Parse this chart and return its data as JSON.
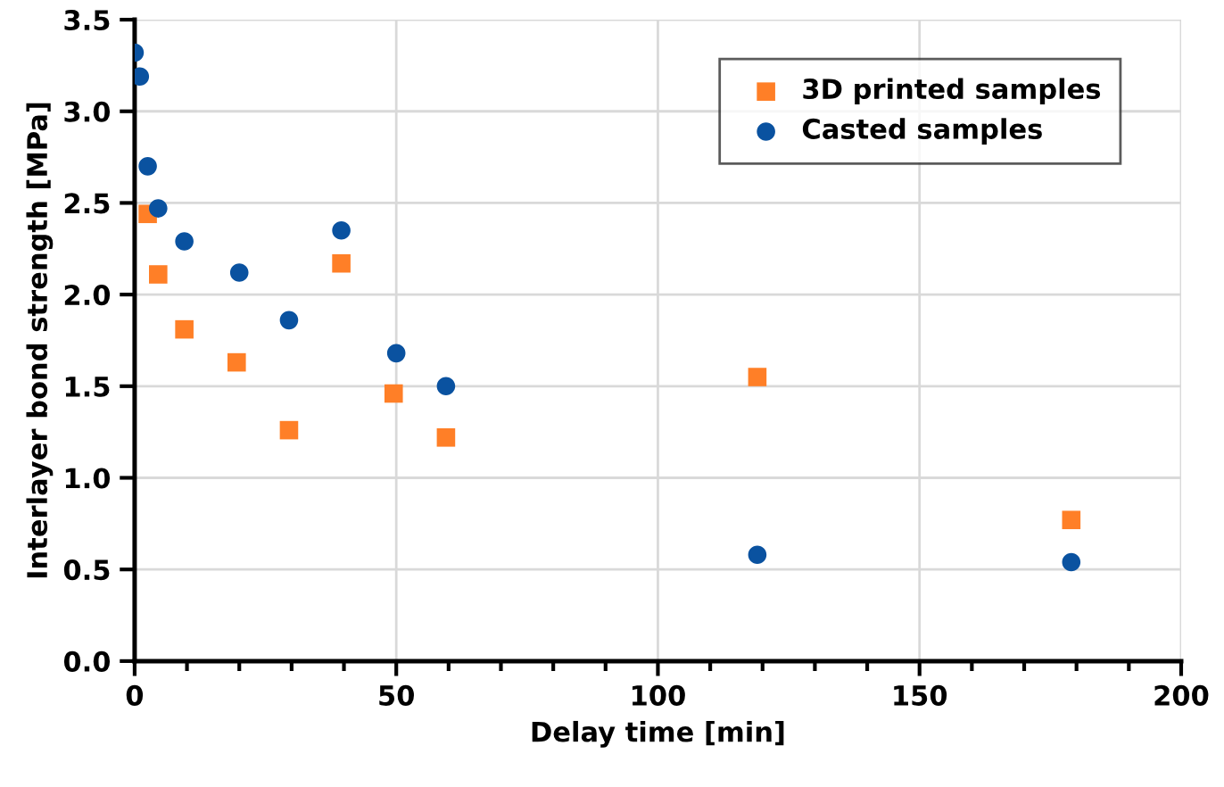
{
  "chart_data": {
    "type": "scatter",
    "xlabel": "Delay time [min]",
    "ylabel": "Interlayer bond strength [MPa]",
    "series": [
      {
        "name": "3D printed samples",
        "color": "#ff7f27",
        "marker": "square",
        "x": [
          2.5,
          4.5,
          9.5,
          19.5,
          29.5,
          39.5,
          49.5,
          59.5,
          119,
          179
        ],
        "values": [
          2.44,
          2.11,
          1.81,
          1.63,
          1.26,
          2.17,
          1.46,
          1.22,
          1.55,
          0.77
        ]
      },
      {
        "name": "Casted samples",
        "color": "#0a52a0",
        "marker": "circle",
        "x": [
          0,
          1,
          2.5,
          4.5,
          9.5,
          20,
          29.5,
          39.5,
          50,
          59.5,
          119,
          179
        ],
        "values": [
          3.32,
          3.19,
          2.7,
          2.47,
          2.29,
          2.12,
          1.86,
          2.35,
          1.68,
          1.5,
          0.58,
          0.54
        ]
      }
    ],
    "xlim": [
      0,
      200
    ],
    "xticks": [
      0,
      50,
      100,
      150,
      200
    ],
    "ylim": [
      0,
      3.5
    ],
    "yticks": [
      {
        "value": 0,
        "label": "0.0"
      },
      {
        "value": 0.5,
        "label": "0.5"
      },
      {
        "value": 1,
        "label": "1.0"
      },
      {
        "value": 1.5,
        "label": "1.5"
      },
      {
        "value": 2,
        "label": "2.0"
      },
      {
        "value": 2.5,
        "label": "2.5"
      },
      {
        "value": 3,
        "label": "3.0"
      },
      {
        "value": 3.5,
        "label": "3.5"
      }
    ],
    "grid": true,
    "legend": "top right"
  }
}
